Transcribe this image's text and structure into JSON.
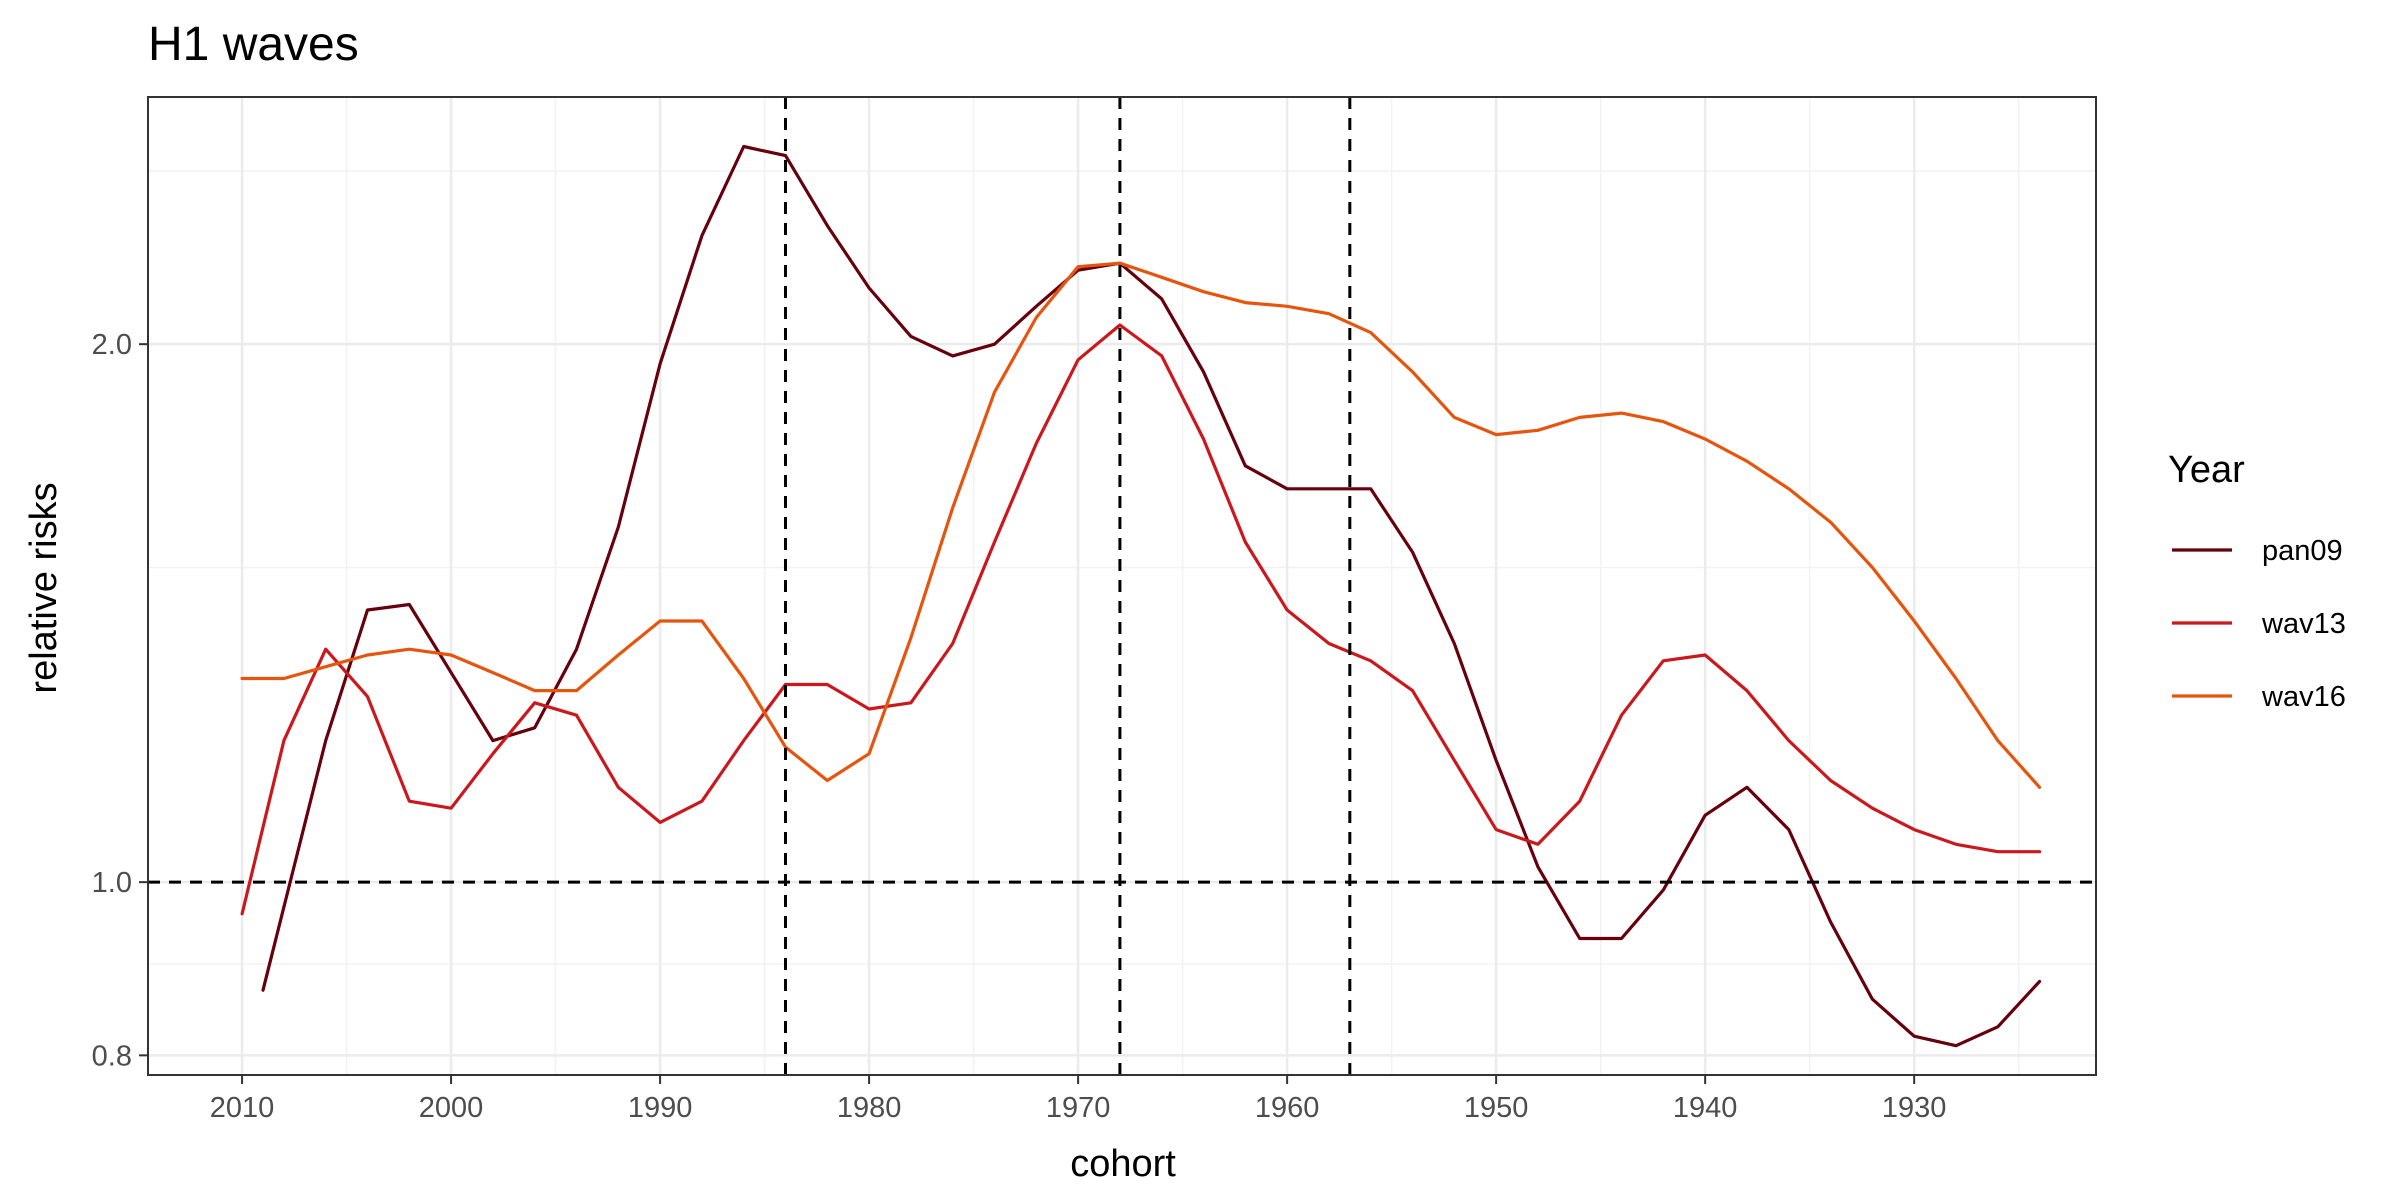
{
  "chart_data": {
    "type": "line",
    "title": "H1 waves",
    "xlabel": "cohort",
    "ylabel": "relative risks",
    "x_reversed": true,
    "y_log_scale": true,
    "xlim": [
      2014.5,
      1921.3
    ],
    "ylim": [
      0.78,
      2.75
    ],
    "x_ticks": [
      2010,
      2000,
      1990,
      1980,
      1970,
      1960,
      1950,
      1940,
      1930
    ],
    "x_tick_labels": [
      "2010",
      "2000",
      "1990",
      "1980",
      "1970",
      "1960",
      "1950",
      "1940",
      "1930"
    ],
    "x_minor_gridlines": [
      2015,
      2005,
      1995,
      1985,
      1975,
      1965,
      1955,
      1945,
      1935,
      1925
    ],
    "y_ticks": [
      0.8,
      1.0,
      2.0
    ],
    "y_tick_labels": [
      "0.8",
      "1.0",
      "2.0"
    ],
    "y_minor_gridlines": [
      0.9,
      1.5,
      2.5
    ],
    "reference_lines": {
      "horizontal": [
        1.0
      ],
      "vertical": [
        1984,
        1968,
        1957
      ]
    },
    "grid": true,
    "legend": {
      "title": "Year",
      "position": "right"
    },
    "series": [
      {
        "name": "pan09",
        "color": "#67000d",
        "x": [
          2009,
          2006,
          2004,
          2002,
          2000,
          1998,
          1996,
          1994,
          1992,
          1990,
          1988,
          1986,
          1984,
          1982,
          1980,
          1978,
          1976,
          1974,
          1972,
          1970,
          1968,
          1966,
          1964,
          1962,
          1960,
          1958,
          1956,
          1954,
          1952,
          1950,
          1948,
          1946,
          1944,
          1942,
          1940,
          1938,
          1936,
          1934,
          1932,
          1930,
          1928,
          1926,
          1924
        ],
        "y": [
          0.87,
          1.2,
          1.42,
          1.43,
          1.31,
          1.2,
          1.22,
          1.35,
          1.58,
          1.95,
          2.3,
          2.58,
          2.55,
          2.33,
          2.15,
          2.02,
          1.97,
          2.0,
          2.1,
          2.2,
          2.22,
          2.12,
          1.93,
          1.71,
          1.66,
          1.66,
          1.66,
          1.53,
          1.36,
          1.17,
          1.02,
          0.93,
          0.93,
          0.99,
          1.09,
          1.13,
          1.07,
          0.95,
          0.86,
          0.82,
          0.81,
          0.83,
          0.88
        ]
      },
      {
        "name": "wav13",
        "color": "#cb181d",
        "x": [
          2010,
          2008,
          2006,
          2004,
          2002,
          2000,
          1998,
          1996,
          1994,
          1992,
          1990,
          1988,
          1986,
          1984,
          1982,
          1980,
          1978,
          1976,
          1974,
          1972,
          1970,
          1968,
          1966,
          1964,
          1962,
          1960,
          1958,
          1956,
          1954,
          1952,
          1950,
          1948,
          1946,
          1944,
          1942,
          1940,
          1938,
          1936,
          1934,
          1932,
          1930,
          1928,
          1926,
          1924
        ],
        "y": [
          0.96,
          1.2,
          1.35,
          1.27,
          1.11,
          1.1,
          1.18,
          1.26,
          1.24,
          1.13,
          1.08,
          1.11,
          1.2,
          1.29,
          1.29,
          1.25,
          1.26,
          1.36,
          1.55,
          1.76,
          1.96,
          2.05,
          1.97,
          1.77,
          1.55,
          1.42,
          1.36,
          1.33,
          1.28,
          1.17,
          1.07,
          1.05,
          1.11,
          1.24,
          1.33,
          1.34,
          1.28,
          1.2,
          1.14,
          1.1,
          1.07,
          1.05,
          1.04,
          1.04
        ]
      },
      {
        "name": "wav16",
        "color": "#e6550d",
        "x": [
          2010,
          2008,
          2006,
          2004,
          2002,
          2000,
          1998,
          1996,
          1994,
          1992,
          1990,
          1988,
          1986,
          1984,
          1982,
          1980,
          1978,
          1976,
          1974,
          1972,
          1970,
          1968,
          1966,
          1964,
          1962,
          1960,
          1958,
          1956,
          1954,
          1952,
          1950,
          1948,
          1946,
          1944,
          1942,
          1940,
          1938,
          1936,
          1934,
          1932,
          1930,
          1928,
          1926,
          1924
        ],
        "y": [
          1.3,
          1.3,
          1.32,
          1.34,
          1.35,
          1.34,
          1.31,
          1.28,
          1.28,
          1.34,
          1.4,
          1.4,
          1.3,
          1.19,
          1.14,
          1.18,
          1.37,
          1.62,
          1.88,
          2.07,
          2.21,
          2.22,
          2.18,
          2.14,
          2.11,
          2.1,
          2.08,
          2.03,
          1.93,
          1.82,
          1.78,
          1.79,
          1.82,
          1.83,
          1.81,
          1.77,
          1.72,
          1.66,
          1.59,
          1.5,
          1.4,
          1.3,
          1.2,
          1.13
        ]
      }
    ]
  }
}
